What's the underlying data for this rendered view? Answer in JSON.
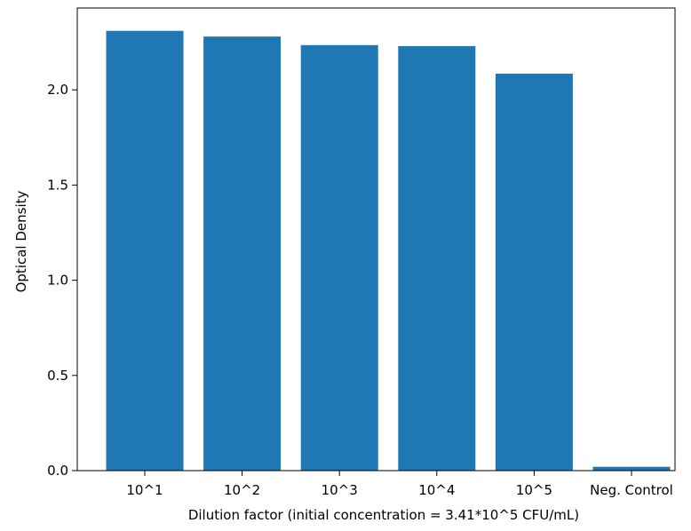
{
  "chart_data": {
    "type": "bar",
    "title": "",
    "categories": [
      "10^1",
      "10^2",
      "10^3",
      "10^4",
      "10^5",
      "Neg. Control"
    ],
    "values": [
      2.31,
      2.28,
      2.235,
      2.23,
      2.085,
      0.02
    ],
    "xlabel": "Dilution factor (initial concentration = 3.41*10^5 CFU/mL)",
    "ylabel": "Optical Density",
    "ylim": [
      0.0,
      2.43
    ],
    "yticks": [
      0.0,
      0.5,
      1.0,
      1.5,
      2.0
    ],
    "ytick_labels": [
      "0.0",
      "0.5",
      "1.0",
      "1.5",
      "2.0"
    ],
    "grid": false,
    "bar_color": "#1f77b4"
  }
}
